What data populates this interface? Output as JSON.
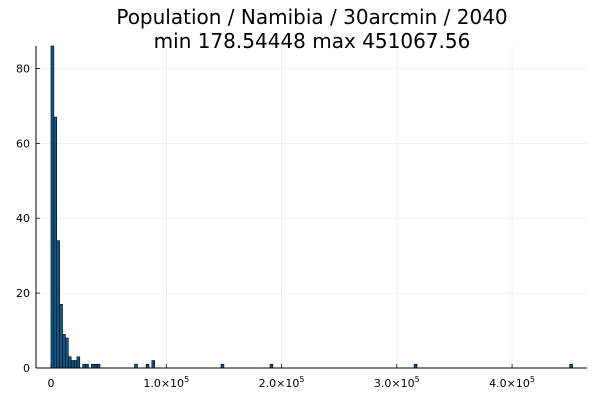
{
  "chart_data": {
    "type": "bar",
    "title": "Population / Namibia / 30arcmin / 2040",
    "subtitle": "min 178.54448  max 451067.56",
    "xlabel": "",
    "ylabel": "",
    "xlim": [
      -13000,
      465000
    ],
    "ylim": [
      0,
      86
    ],
    "grid": true,
    "legend": "none",
    "bar_color": "#0b5a8a",
    "bin_width": 2500,
    "bins": [
      {
        "x": 0,
        "count": 86
      },
      {
        "x": 2500,
        "count": 67
      },
      {
        "x": 5000,
        "count": 34
      },
      {
        "x": 7500,
        "count": 17
      },
      {
        "x": 10000,
        "count": 9
      },
      {
        "x": 12500,
        "count": 8
      },
      {
        "x": 15000,
        "count": 3
      },
      {
        "x": 17500,
        "count": 2
      },
      {
        "x": 20000,
        "count": 2
      },
      {
        "x": 22500,
        "count": 3
      },
      {
        "x": 27500,
        "count": 1
      },
      {
        "x": 30000,
        "count": 1
      },
      {
        "x": 35000,
        "count": 1
      },
      {
        "x": 37500,
        "count": 1
      },
      {
        "x": 40000,
        "count": 1
      },
      {
        "x": 72500,
        "count": 1
      },
      {
        "x": 82500,
        "count": 1
      },
      {
        "x": 87500,
        "count": 2
      },
      {
        "x": 147500,
        "count": 1
      },
      {
        "x": 190000,
        "count": 1
      },
      {
        "x": 315000,
        "count": 1
      },
      {
        "x": 450000,
        "count": 1
      }
    ],
    "x_ticks": [
      {
        "value": 0,
        "mantissa": "0",
        "exponent": ""
      },
      {
        "value": 100000,
        "mantissa": "1.0×10",
        "exponent": "5"
      },
      {
        "value": 200000,
        "mantissa": "2.0×10",
        "exponent": "5"
      },
      {
        "value": 300000,
        "mantissa": "3.0×10",
        "exponent": "5"
      },
      {
        "value": 400000,
        "mantissa": "4.0×10",
        "exponent": "5"
      }
    ],
    "y_ticks": [
      0,
      20,
      40,
      60,
      80
    ]
  }
}
